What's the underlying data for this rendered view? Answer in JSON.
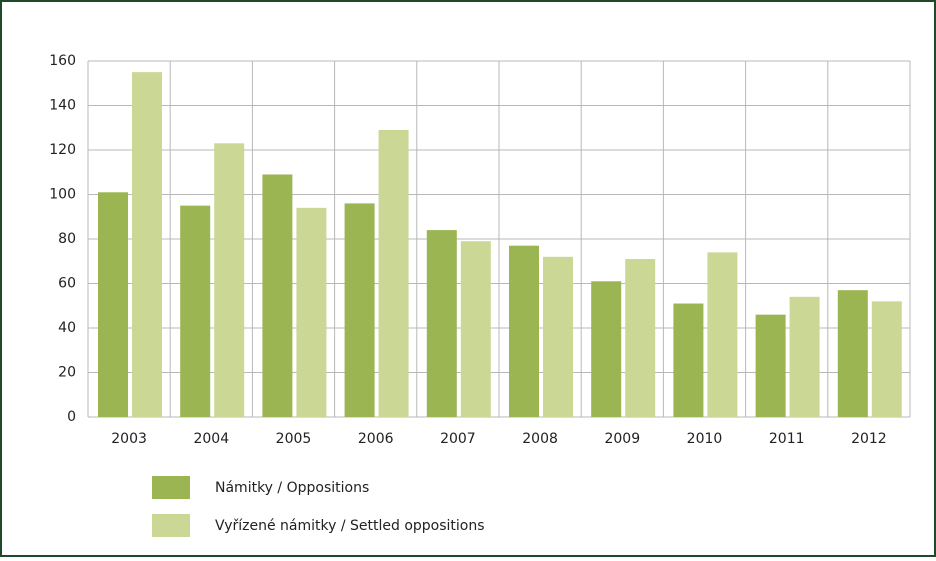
{
  "chart_data": {
    "type": "bar",
    "categories": [
      "2003",
      "2004",
      "2005",
      "2006",
      "2007",
      "2008",
      "2009",
      "2010",
      "2011",
      "2012"
    ],
    "series": [
      {
        "name": "Námitky / Oppositions",
        "color": "#9bb553",
        "values": [
          101,
          95,
          109,
          96,
          84,
          77,
          61,
          51,
          46,
          57
        ]
      },
      {
        "name": "Vyřízené námitky / Settled oppositions",
        "color": "#cbd895",
        "values": [
          155,
          123,
          94,
          129,
          79,
          72,
          71,
          74,
          54,
          52
        ]
      }
    ],
    "ylim": [
      0,
      160
    ],
    "yticks": [
      0,
      20,
      40,
      60,
      80,
      100,
      120,
      140,
      160
    ],
    "grid": true
  }
}
